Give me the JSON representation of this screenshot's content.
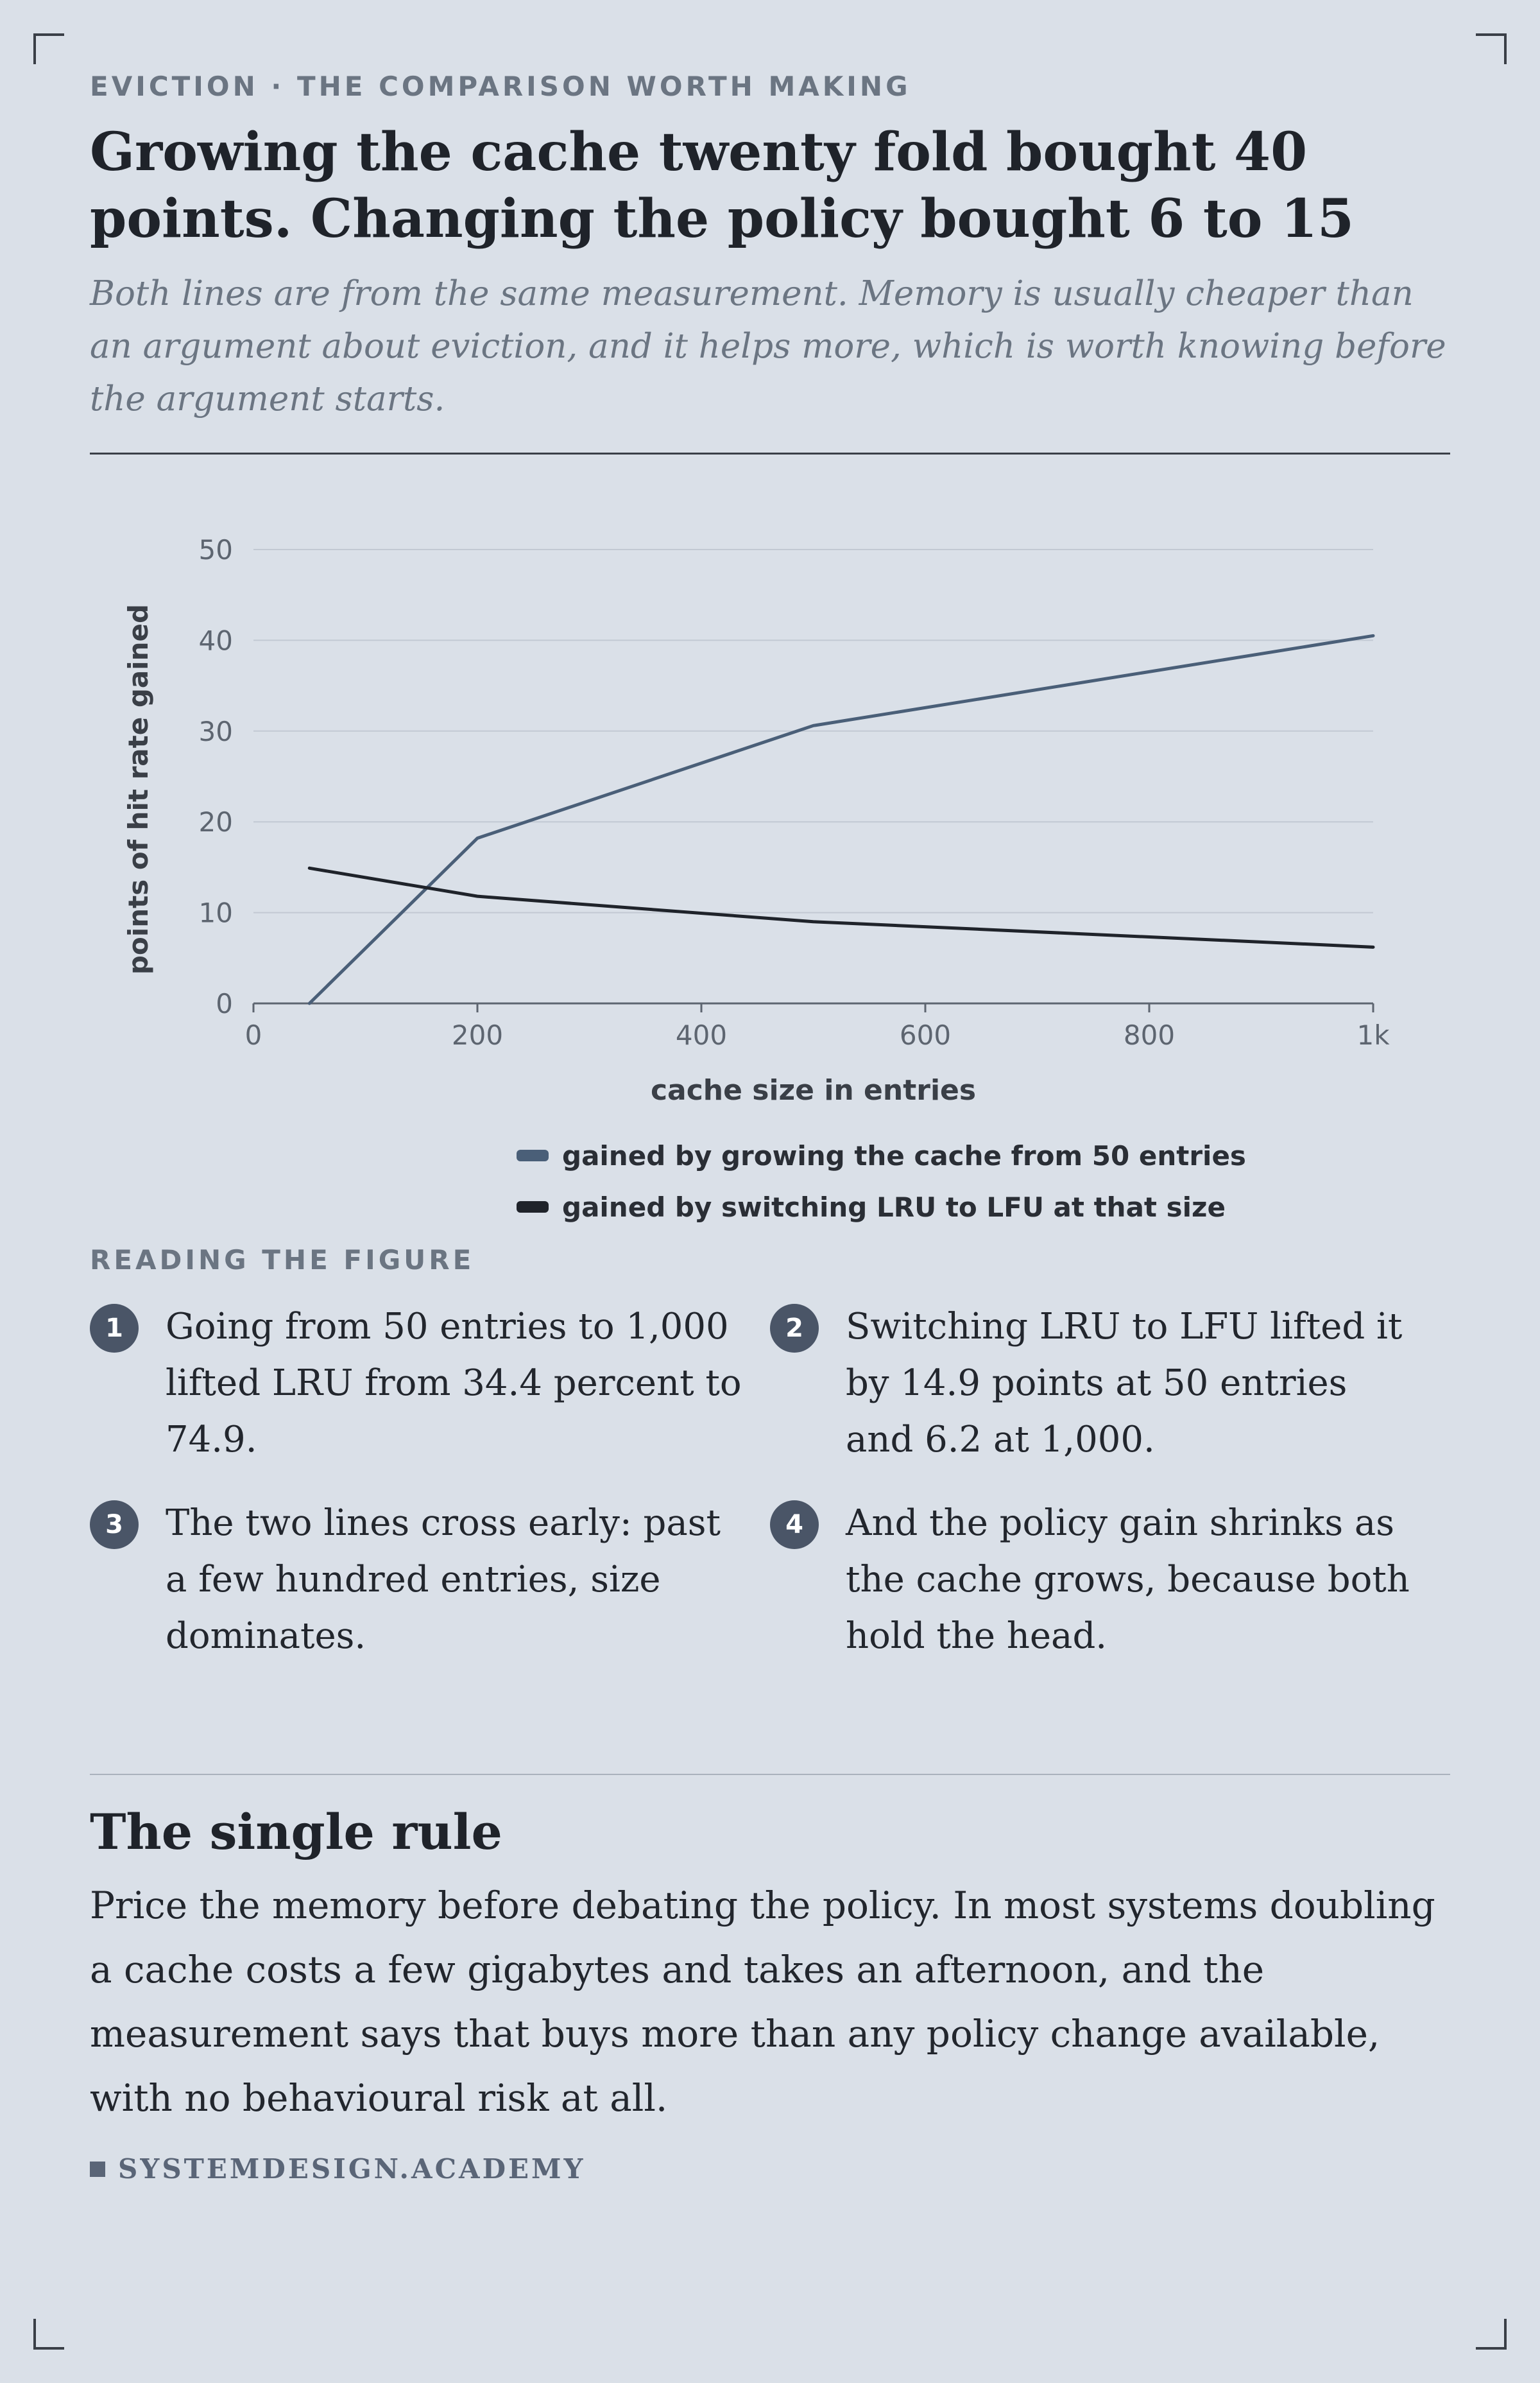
{
  "header": {
    "kicker": "EVICTION · THE COMPARISON WORTH MAKING",
    "title": "Growing the cache twenty fold bought 40 points. Changing the policy bought 6 to 15",
    "subtitle": "Both lines are from the same measurement. Memory is usually cheaper than an argument about eviction, and it helps more, which is worth knowing before the argument starts."
  },
  "chart_data": {
    "type": "line",
    "xlabel": "cache size in entries",
    "ylabel": "points of hit rate gained",
    "xlim": [
      0,
      1000
    ],
    "ylim": [
      0,
      50
    ],
    "x_ticks": [
      {
        "value": 0,
        "label": "0"
      },
      {
        "value": 200,
        "label": "200"
      },
      {
        "value": 400,
        "label": "400"
      },
      {
        "value": 600,
        "label": "600"
      },
      {
        "value": 800,
        "label": "800"
      },
      {
        "value": 1000,
        "label": "1k"
      }
    ],
    "y_ticks": [
      {
        "value": 0,
        "label": "0"
      },
      {
        "value": 10,
        "label": "10"
      },
      {
        "value": 20,
        "label": "20"
      },
      {
        "value": 30,
        "label": "30"
      },
      {
        "value": 40,
        "label": "40"
      },
      {
        "value": 50,
        "label": "50"
      }
    ],
    "grid": true,
    "legend_position": "bottom-center",
    "series": [
      {
        "name": "gained by growing the cache from 50 entries",
        "color": "#4a5f78",
        "points": [
          [
            50,
            0
          ],
          [
            200,
            18.2
          ],
          [
            500,
            30.6
          ],
          [
            1000,
            40.5
          ]
        ]
      },
      {
        "name": "gained by switching LRU to LFU at that size",
        "color": "#1f232a",
        "points": [
          [
            50,
            14.9
          ],
          [
            200,
            11.8
          ],
          [
            500,
            9.0
          ],
          [
            1000,
            6.2
          ]
        ]
      }
    ]
  },
  "reading": {
    "label": "READING THE FIGURE",
    "notes": [
      {
        "num": "1",
        "text": "Going from 50 entries to 1,000 lifted LRU from 34.4 percent to 74.9."
      },
      {
        "num": "2",
        "text": "Switching LRU to LFU lifted it by 14.9 points at 50 entries and 6.2 at 1,000."
      },
      {
        "num": "3",
        "text": "The two lines cross early: past a few hundred entries, size dominates."
      },
      {
        "num": "4",
        "text": "And the policy gain shrinks as the cache grows, because both hold the head."
      }
    ]
  },
  "rule": {
    "title": "The single rule",
    "body": "Price the memory before debating the policy. In most systems doubling a cache costs a few gigabytes and takes an afternoon, and the measurement says that buys more than any policy change available, with no behavioural risk at all."
  },
  "footer": {
    "brand": "SYSTEMDESIGN.ACADEMY"
  }
}
